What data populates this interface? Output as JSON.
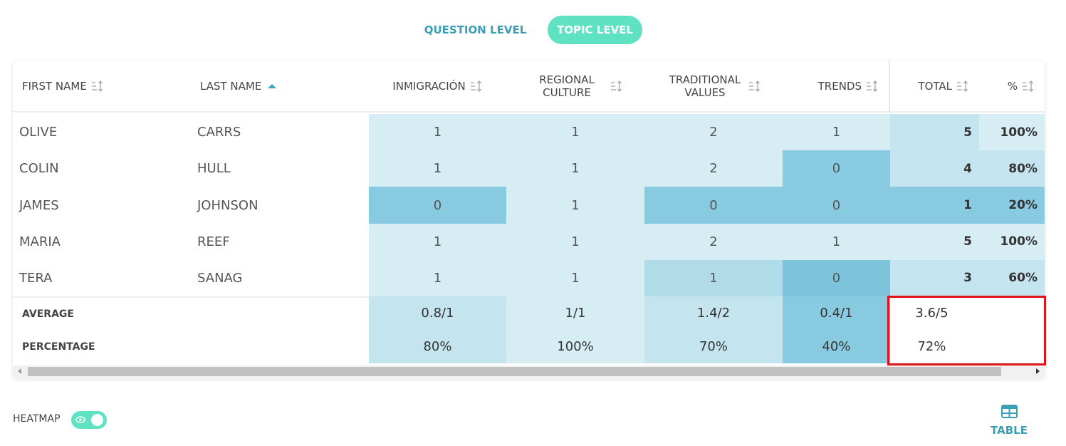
{
  "tabs": [
    "QUESTION LEVEL",
    "TOPIC LEVEL"
  ],
  "table": {
    "headers": [
      "FIRST NAME",
      "LAST NAME",
      "INMIGRACIÓN",
      "REGIONAL CULTURE",
      "TRADITIONAL VALUES",
      "TRENDS",
      "TOTAL",
      "%"
    ],
    "rows": [
      [
        "OLIVE",
        "CARRS",
        "1",
        "1",
        "2",
        "1",
        "5",
        "100%"
      ],
      [
        "COLIN",
        "HULL",
        "1",
        "1",
        "2",
        "0",
        "4",
        "80%"
      ],
      [
        "JAMES",
        "JOHNSON",
        "0",
        "1",
        "0",
        "0",
        "1",
        "20%"
      ],
      [
        "MARIA",
        "REEF",
        "1",
        "1",
        "2",
        "1",
        "5",
        "100%"
      ],
      [
        "TERA",
        "SANAG",
        "1",
        "1",
        "1",
        "0",
        "3",
        "60%"
      ]
    ],
    "footer": [
      {
        "label": "AVERAGE",
        "values": [
          "0.8/1",
          "1/1",
          "1.4/2",
          "0.4/1",
          "3.6/5"
        ]
      },
      {
        "label": "PERCENTAGE",
        "values": [
          "80%",
          "100%",
          "70%",
          "40%",
          "72%"
        ]
      }
    ]
  },
  "heatmap_label": "HEATMAP",
  "view_label": "TABLE"
}
